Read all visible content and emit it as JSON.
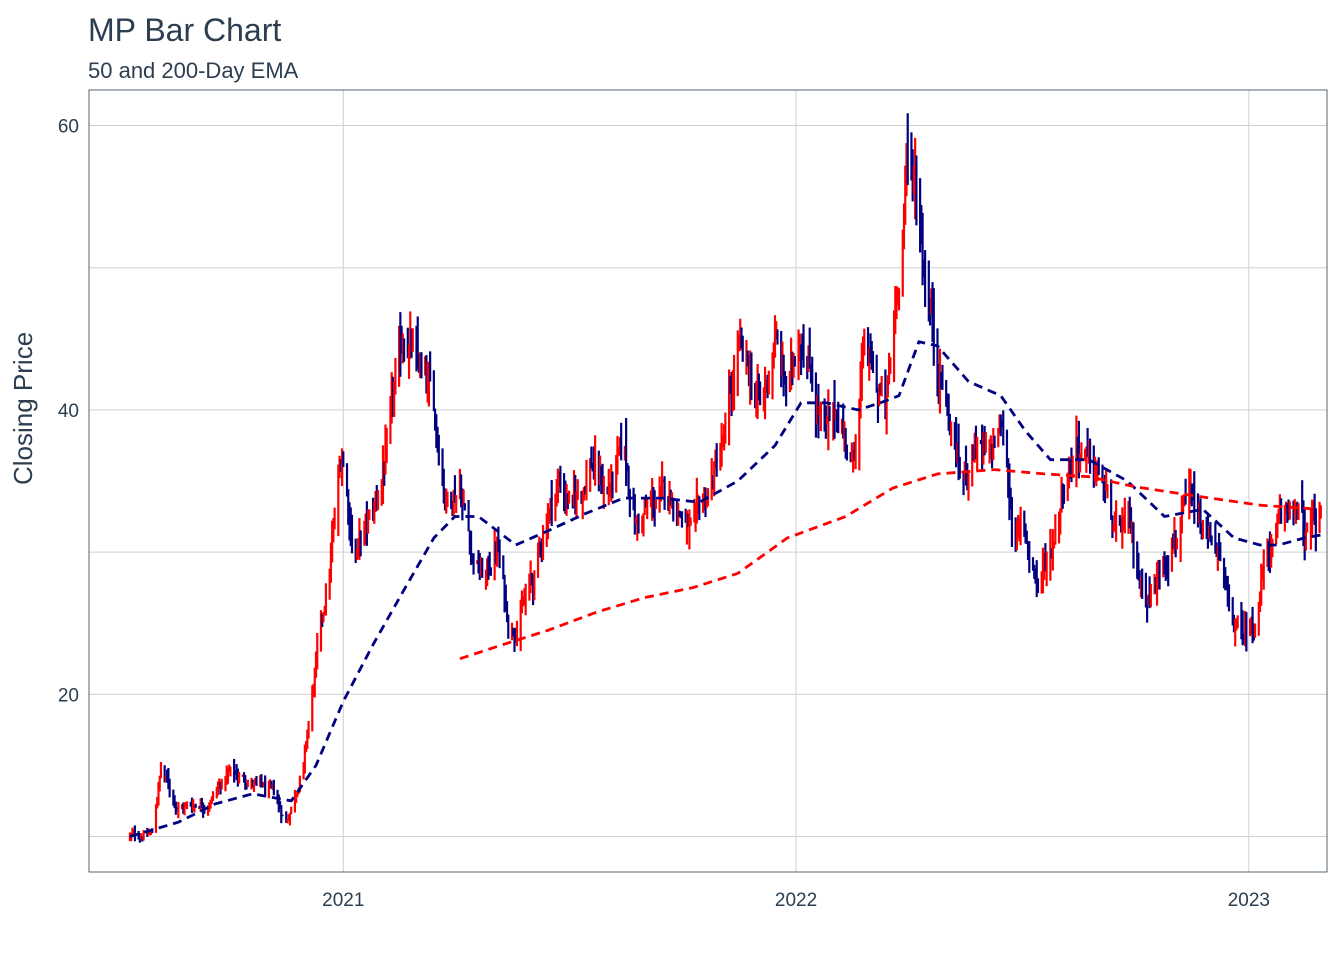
{
  "chart_data": {
    "type": "bar",
    "title": "MP Bar Chart",
    "subtitle": "50 and 200-Day EMA",
    "xlabel": "",
    "ylabel": "Closing Price",
    "x_ticks": [
      "2021",
      "2022",
      "2023"
    ],
    "y_ticks": [
      20,
      40,
      60
    ],
    "ylim": [
      7.5,
      62.5
    ],
    "xlim": [
      "2020-06-10",
      "2023-03-05"
    ],
    "grid": true,
    "legend": "none",
    "colors": {
      "up": "#ff0000",
      "down": "#000080",
      "ema50": "#000080",
      "ema200": "#ff0000"
    },
    "price_anchors": [
      [
        "2020-07-13",
        10.0
      ],
      [
        "2020-07-31",
        10.2
      ],
      [
        "2020-08-07",
        14.8
      ],
      [
        "2020-08-21",
        12.0
      ],
      [
        "2020-09-15",
        12.5
      ],
      [
        "2020-10-01",
        14.5
      ],
      [
        "2020-10-15",
        14.0
      ],
      [
        "2020-11-05",
        13.0
      ],
      [
        "2020-11-16",
        11.0
      ],
      [
        "2020-11-30",
        15.0
      ],
      [
        "2020-12-10",
        22.0
      ],
      [
        "2020-12-20",
        28.0
      ],
      [
        "2020-12-31",
        37.0
      ],
      [
        "2021-01-10",
        30.0
      ],
      [
        "2021-01-25",
        32.5
      ],
      [
        "2021-02-05",
        37.0
      ],
      [
        "2021-02-20",
        46.0
      ],
      [
        "2021-03-01",
        43.0
      ],
      [
        "2021-03-15",
        40.0
      ],
      [
        "2021-03-25",
        34.0
      ],
      [
        "2021-04-05",
        35.0
      ],
      [
        "2021-04-15",
        30.0
      ],
      [
        "2021-04-25",
        28.0
      ],
      [
        "2021-05-05",
        30.5
      ],
      [
        "2021-05-15",
        24.5
      ],
      [
        "2021-05-25",
        26.0
      ],
      [
        "2021-06-05",
        28.5
      ],
      [
        "2021-06-15",
        33.0
      ],
      [
        "2021-06-25",
        35.0
      ],
      [
        "2021-07-05",
        33.0
      ],
      [
        "2021-07-20",
        36.5
      ],
      [
        "2021-08-01",
        34.0
      ],
      [
        "2021-08-15",
        37.0
      ],
      [
        "2021-08-25",
        32.0
      ],
      [
        "2021-09-10",
        33.5
      ],
      [
        "2021-09-25",
        34.0
      ],
      [
        "2021-10-10",
        31.0
      ],
      [
        "2021-10-25",
        35.0
      ],
      [
        "2021-11-05",
        38.0
      ],
      [
        "2021-11-15",
        44.0
      ],
      [
        "2021-11-25",
        42.0
      ],
      [
        "2021-12-05",
        40.0
      ],
      [
        "2021-12-15",
        45.0
      ],
      [
        "2021-12-25",
        41.0
      ],
      [
        "2022-01-05",
        46.0
      ],
      [
        "2022-01-15",
        42.0
      ],
      [
        "2022-01-25",
        38.0
      ],
      [
        "2022-02-05",
        40.0
      ],
      [
        "2022-02-15",
        36.0
      ],
      [
        "2022-02-25",
        44.0
      ],
      [
        "2022-03-05",
        42.0
      ],
      [
        "2022-03-15",
        40.0
      ],
      [
        "2022-03-22",
        47.0
      ],
      [
        "2022-03-31",
        57.0
      ],
      [
        "2022-04-08",
        56.0
      ],
      [
        "2022-04-15",
        50.0
      ],
      [
        "2022-04-25",
        44.0
      ],
      [
        "2022-05-05",
        39.0
      ],
      [
        "2022-05-15",
        35.0
      ],
      [
        "2022-05-25",
        38.0
      ],
      [
        "2022-06-05",
        36.0
      ],
      [
        "2022-06-15",
        39.0
      ],
      [
        "2022-06-25",
        32.0
      ],
      [
        "2022-07-05",
        31.0
      ],
      [
        "2022-07-15",
        28.0
      ],
      [
        "2022-07-25",
        30.0
      ],
      [
        "2022-08-05",
        35.0
      ],
      [
        "2022-08-15",
        38.0
      ],
      [
        "2022-08-25",
        36.0
      ],
      [
        "2022-09-05",
        35.0
      ],
      [
        "2022-09-15",
        31.0
      ],
      [
        "2022-09-25",
        32.0
      ],
      [
        "2022-10-05",
        28.0
      ],
      [
        "2022-10-15",
        27.0
      ],
      [
        "2022-10-25",
        30.0
      ],
      [
        "2022-11-05",
        32.0
      ],
      [
        "2022-11-15",
        33.0
      ],
      [
        "2022-11-25",
        31.0
      ],
      [
        "2022-12-05",
        31.0
      ],
      [
        "2022-12-15",
        26.0
      ],
      [
        "2022-12-25",
        24.0
      ],
      [
        "2023-01-05",
        25.0
      ],
      [
        "2023-01-15",
        30.0
      ],
      [
        "2023-01-25",
        31.0
      ],
      [
        "2023-02-05",
        34.0
      ],
      [
        "2023-02-15",
        31.0
      ],
      [
        "2023-02-28",
        32.5
      ]
    ],
    "ema50": [
      [
        "2020-07-13",
        10.0
      ],
      [
        "2020-08-21",
        11.0
      ],
      [
        "2020-09-20",
        12.3
      ],
      [
        "2020-10-20",
        13.0
      ],
      [
        "2020-11-20",
        12.5
      ],
      [
        "2020-12-10",
        15.0
      ],
      [
        "2021-01-01",
        19.5
      ],
      [
        "2021-01-25",
        23.5
      ],
      [
        "2021-02-20",
        27.5
      ],
      [
        "2021-03-15",
        31.0
      ],
      [
        "2021-04-01",
        32.5
      ],
      [
        "2021-04-20",
        32.5
      ],
      [
        "2021-05-20",
        30.5
      ],
      [
        "2021-06-15",
        31.5
      ],
      [
        "2021-07-15",
        32.7
      ],
      [
        "2021-08-15",
        33.8
      ],
      [
        "2021-09-15",
        33.8
      ],
      [
        "2021-10-15",
        33.5
      ],
      [
        "2021-11-15",
        35.0
      ],
      [
        "2021-12-15",
        37.5
      ],
      [
        "2022-01-05",
        40.5
      ],
      [
        "2022-01-25",
        40.5
      ],
      [
        "2022-02-20",
        40.0
      ],
      [
        "2022-03-10",
        40.5
      ],
      [
        "2022-03-25",
        41.0
      ],
      [
        "2022-04-10",
        44.8
      ],
      [
        "2022-04-25",
        44.5
      ],
      [
        "2022-05-20",
        42.0
      ],
      [
        "2022-06-15",
        41.0
      ],
      [
        "2022-07-05",
        38.5
      ],
      [
        "2022-07-25",
        36.5
      ],
      [
        "2022-08-25",
        36.5
      ],
      [
        "2022-09-25",
        35.0
      ],
      [
        "2022-10-25",
        32.5
      ],
      [
        "2022-11-25",
        33.0
      ],
      [
        "2022-12-20",
        31.0
      ],
      [
        "2023-01-10",
        30.5
      ],
      [
        "2023-01-25",
        30.5
      ],
      [
        "2023-02-15",
        31.0
      ],
      [
        "2023-02-28",
        31.2
      ]
    ],
    "ema200": [
      [
        "2021-04-05",
        22.5
      ],
      [
        "2021-05-10",
        23.5
      ],
      [
        "2021-06-15",
        24.5
      ],
      [
        "2021-07-25",
        25.8
      ],
      [
        "2021-09-01",
        26.8
      ],
      [
        "2021-10-10",
        27.5
      ],
      [
        "2021-11-15",
        28.5
      ],
      [
        "2021-12-25",
        31.0
      ],
      [
        "2022-02-10",
        32.5
      ],
      [
        "2022-03-20",
        34.5
      ],
      [
        "2022-04-25",
        35.5
      ],
      [
        "2022-06-10",
        35.8
      ],
      [
        "2022-07-20",
        35.5
      ],
      [
        "2022-08-25",
        35.3
      ],
      [
        "2022-10-01",
        34.6
      ],
      [
        "2022-11-15",
        34.0
      ],
      [
        "2023-01-10",
        33.3
      ],
      [
        "2023-02-28",
        33.0
      ]
    ]
  }
}
